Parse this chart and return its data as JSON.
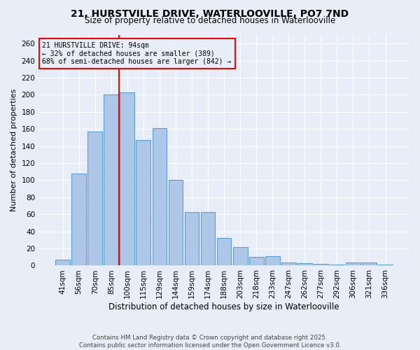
{
  "title": "21, HURSTVILLE DRIVE, WATERLOOVILLE, PO7 7ND",
  "subtitle": "Size of property relative to detached houses in Waterlooville",
  "xlabel": "Distribution of detached houses by size in Waterlooville",
  "ylabel": "Number of detached properties",
  "categories": [
    "41sqm",
    "56sqm",
    "70sqm",
    "85sqm",
    "100sqm",
    "115sqm",
    "129sqm",
    "144sqm",
    "159sqm",
    "174sqm",
    "188sqm",
    "203sqm",
    "218sqm",
    "233sqm",
    "247sqm",
    "262sqm",
    "277sqm",
    "292sqm",
    "306sqm",
    "321sqm",
    "336sqm"
  ],
  "values": [
    7,
    108,
    157,
    200,
    203,
    147,
    161,
    100,
    63,
    63,
    32,
    22,
    10,
    11,
    4,
    3,
    2,
    1,
    4,
    4,
    1
  ],
  "bar_color": "#aec6e8",
  "bar_edge_color": "#5a9fd4",
  "vline_color": "red",
  "annotation_text": "21 HURSTVILLE DRIVE: 94sqm\n← 32% of detached houses are smaller (389)\n68% of semi-detached houses are larger (842) →",
  "annotation_box_color": "red",
  "ylim": [
    0,
    270
  ],
  "yticks": [
    0,
    20,
    40,
    60,
    80,
    100,
    120,
    140,
    160,
    180,
    200,
    220,
    240,
    260
  ],
  "footer_line1": "Contains HM Land Registry data © Crown copyright and database right 2025.",
  "footer_line2": "Contains public sector information licensed under the Open Government Licence v3.0.",
  "bg_color": "#e8eef7",
  "grid_color": "#ffffff"
}
